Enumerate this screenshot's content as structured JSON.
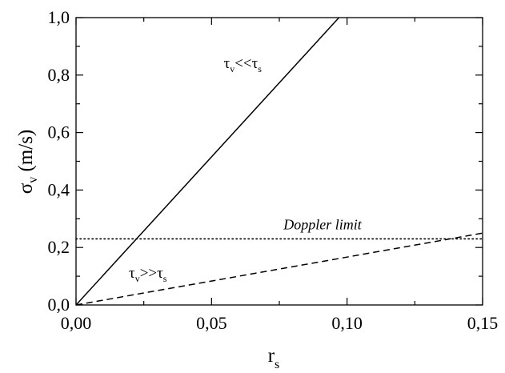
{
  "chart_data": {
    "type": "line",
    "xlabel": "r",
    "xlabel_sub": "s",
    "ylabel_symbol": "σ",
    "ylabel_sub": "v",
    "ylabel_unit": " (m/s)",
    "xlim": [
      0,
      0.15
    ],
    "ylim": [
      0,
      1.0
    ],
    "x_ticks": [
      0,
      0.05,
      0.1,
      0.15
    ],
    "x_tick_labels": [
      "0,00",
      "0,05",
      "0,10",
      "0,15"
    ],
    "y_ticks": [
      0,
      0.2,
      0.4,
      0.6,
      0.8,
      1.0
    ],
    "y_tick_labels": [
      "0,0",
      "0,2",
      "0,4",
      "0,6",
      "0,8",
      "1,0"
    ],
    "grid": false,
    "series": [
      {
        "style": "solid",
        "x": [
          0,
          0.097
        ],
        "y": [
          0,
          1.0
        ],
        "label_text": "τv<<τs"
      },
      {
        "style": "dashed",
        "x": [
          0,
          0.15
        ],
        "y": [
          0,
          0.25
        ],
        "label_text": "τv>>τs"
      }
    ],
    "reference_lines": [
      {
        "style": "dotted",
        "y": 0.23,
        "label": "Doppler limit"
      }
    ],
    "annotations": [
      {
        "text_main_1": "τ",
        "text_sub_1": "v",
        "text_op": "<<",
        "text_main_2": "τ",
        "text_sub_2": "s",
        "x": 0.0615,
        "y": 0.825
      },
      {
        "text_main_1": "τ",
        "text_sub_1": "v",
        "text_op": ">>",
        "text_main_2": "τ",
        "text_sub_2": "s",
        "x": 0.0265,
        "y": 0.095
      }
    ],
    "colors": {
      "line": "#000000",
      "background": "#ffffff"
    }
  }
}
